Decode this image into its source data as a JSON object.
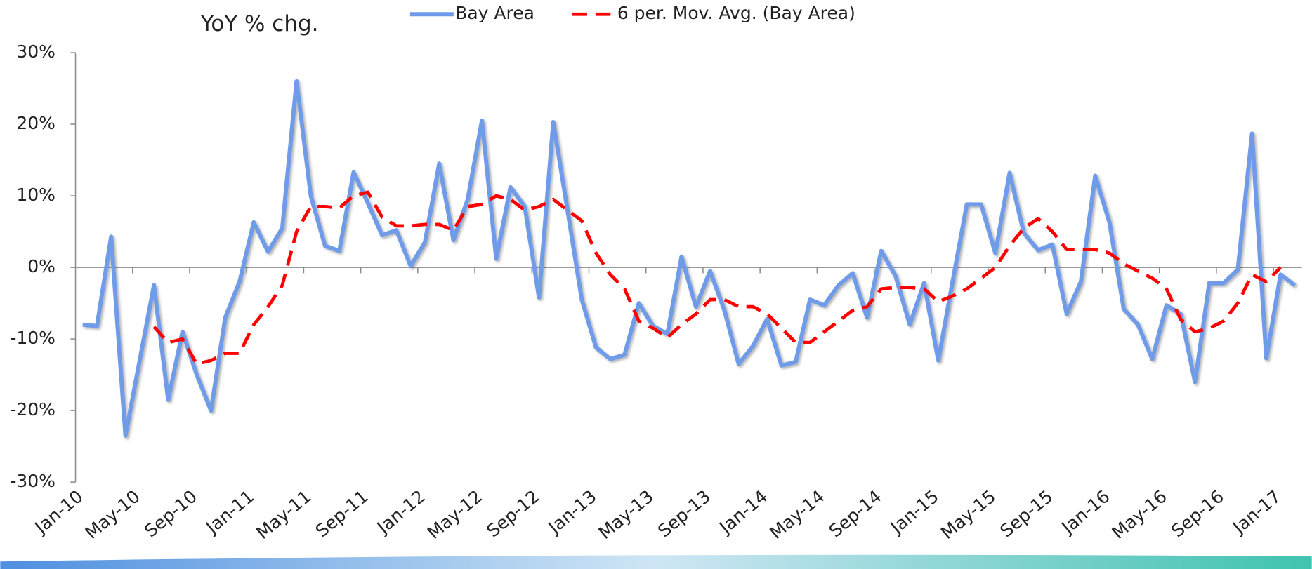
{
  "chart_data": {
    "type": "line",
    "title": "YoY % chg.",
    "categories": [
      "Jan-10",
      null,
      null,
      null,
      "May-10",
      null,
      null,
      null,
      "Sep-10",
      null,
      null,
      null,
      "Jan-11",
      null,
      null,
      null,
      "May-11",
      null,
      null,
      null,
      "Sep-11",
      null,
      null,
      null,
      "Jan-12",
      null,
      null,
      null,
      "May-12",
      null,
      null,
      null,
      "Sep-12",
      null,
      null,
      null,
      "Jan-13",
      null,
      null,
      null,
      "May-13",
      null,
      null,
      null,
      "Sep-13",
      null,
      null,
      null,
      "Jan-14",
      null,
      null,
      null,
      "May-14",
      null,
      null,
      null,
      "Sep-14",
      null,
      null,
      null,
      "Jan-15",
      null,
      null,
      null,
      "May-15",
      null,
      null,
      null,
      "Sep-15",
      null,
      null,
      null,
      "Jan-16",
      null,
      null,
      null,
      "May-16",
      null,
      null,
      null,
      "Sep-16",
      null,
      null,
      null,
      "Jan-17",
      null
    ],
    "series": [
      {
        "name": "Bay Area",
        "color": "#6f9be8",
        "dashed": false,
        "values": [
          -8.0,
          -8.2,
          4.3,
          -23.5,
          -13,
          -2.5,
          -18.5,
          -9,
          -15,
          -20,
          -7,
          -2,
          6.3,
          2.2,
          5.5,
          26,
          10,
          3,
          2.3,
          13.3,
          9,
          4.5,
          5.2,
          0.2,
          3.5,
          14.5,
          3.8,
          9.5,
          20.5,
          1.2,
          11.2,
          8.5,
          -4.2,
          20.3,
          8,
          -4.5,
          -11.2,
          -12.8,
          -12.2,
          -5,
          -8.2,
          -9.3,
          1.5,
          -5.5,
          -0.5,
          -6,
          -13.5,
          -11,
          -7.2,
          -13.7,
          -13.2,
          -4.5,
          -5.3,
          -2.5,
          -0.8,
          -7,
          2.3,
          -1.2,
          -8,
          -2.2,
          -13,
          -2,
          8.8,
          8.8,
          2,
          13.2,
          4.8,
          2.4,
          3.2,
          -6.5,
          -2,
          12.8,
          6.3,
          -5.8,
          -8,
          -12.8,
          -5.3,
          -6.5,
          -16,
          -2.2,
          -2.2,
          -0.3,
          18.7,
          -12.7,
          -1,
          -2.5
        ]
      },
      {
        "name": "6 per. Mov. Avg. (Bay Area)",
        "color": "#ff0000",
        "dashed": true,
        "values": [
          null,
          null,
          null,
          null,
          null,
          -8.3,
          -10.5,
          -10,
          -13.5,
          -13,
          -12,
          -12,
          -8,
          -5.5,
          -2.5,
          5,
          8.5,
          8.5,
          8.3,
          10,
          10.5,
          7,
          5.8,
          5.8,
          6,
          6,
          5.2,
          8.5,
          8.8,
          10,
          9.5,
          8,
          8.5,
          9.5,
          8,
          6.5,
          2,
          -1,
          -3,
          -7.5,
          -8.5,
          -9.8,
          -8,
          -6.5,
          -4.5,
          -4.5,
          -5.5,
          -5.5,
          -6.5,
          -8.5,
          -10.5,
          -10.5,
          -9,
          -7.5,
          -6,
          -5.5,
          -3,
          -2.8,
          -2.8,
          -3,
          -4.8,
          -4,
          -3,
          -1.5,
          0,
          3,
          5.5,
          6.8,
          5,
          2.5,
          2.5,
          2.5,
          2,
          0.5,
          -0.5,
          -1.5,
          -3,
          -7.3,
          -9,
          -8.5,
          -7.5,
          -5,
          -1,
          -2,
          0,
          null
        ]
      }
    ],
    "ylim": [
      -30,
      30
    ],
    "yticks": [
      {
        "value": -30,
        "label": "-30%"
      },
      {
        "value": -20,
        "label": "-20%"
      },
      {
        "value": -10,
        "label": "-10%"
      },
      {
        "value": 0,
        "label": "0%"
      },
      {
        "value": 10,
        "label": "10%"
      },
      {
        "value": 20,
        "label": "20%"
      },
      {
        "value": 30,
        "label": "30%"
      }
    ],
    "legend": "top"
  }
}
